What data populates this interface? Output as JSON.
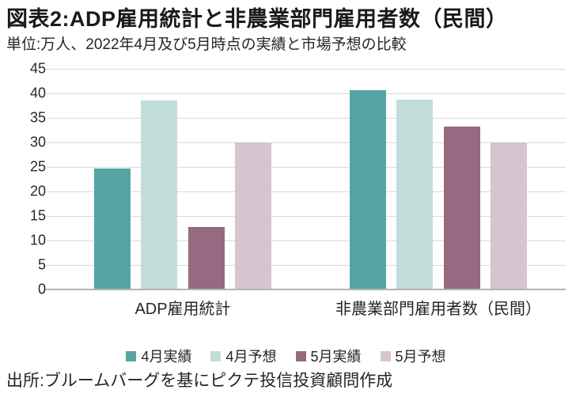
{
  "header": {
    "title": "図表2:ADP雇用統計と非農業部門雇用者数（民間）",
    "subtitle": "単位:万人、2022年4月及び5月時点の実績と市場予想の比較"
  },
  "chart_data": {
    "type": "bar",
    "title": "図表2:ADP雇用統計と非農業部門雇用者数（民間）",
    "subtitle": "単位:万人、2022年4月及び5月時点の実績と市場予想の比較",
    "categories": [
      "ADP雇用統計",
      "非農業部門雇用者数（民間）"
    ],
    "series": [
      {
        "name": "4月実績",
        "color": "#57a5a3",
        "values": [
          24.7,
          40.6
        ]
      },
      {
        "name": "4月予想",
        "color": "#c1ddd9",
        "values": [
          38.5,
          38.7
        ]
      },
      {
        "name": "5月実績",
        "color": "#966a80",
        "values": [
          12.8,
          33.3
        ]
      },
      {
        "name": "5月予想",
        "color": "#d6c4d1",
        "values": [
          30.0,
          30.0
        ]
      }
    ],
    "xlabel": "",
    "ylabel": "",
    "ylim": [
      0,
      45
    ],
    "ytick_step": 5,
    "yticks": [
      0,
      5,
      10,
      15,
      20,
      25,
      30,
      35,
      40,
      45
    ],
    "grid": true,
    "gridline_color": "#d9d9d9",
    "axis_line_color": "#b3b3b3",
    "legend_position": "bottom"
  },
  "footer": {
    "source": "出所:ブルームバーグを基にピクテ投信投資顧問作成"
  }
}
